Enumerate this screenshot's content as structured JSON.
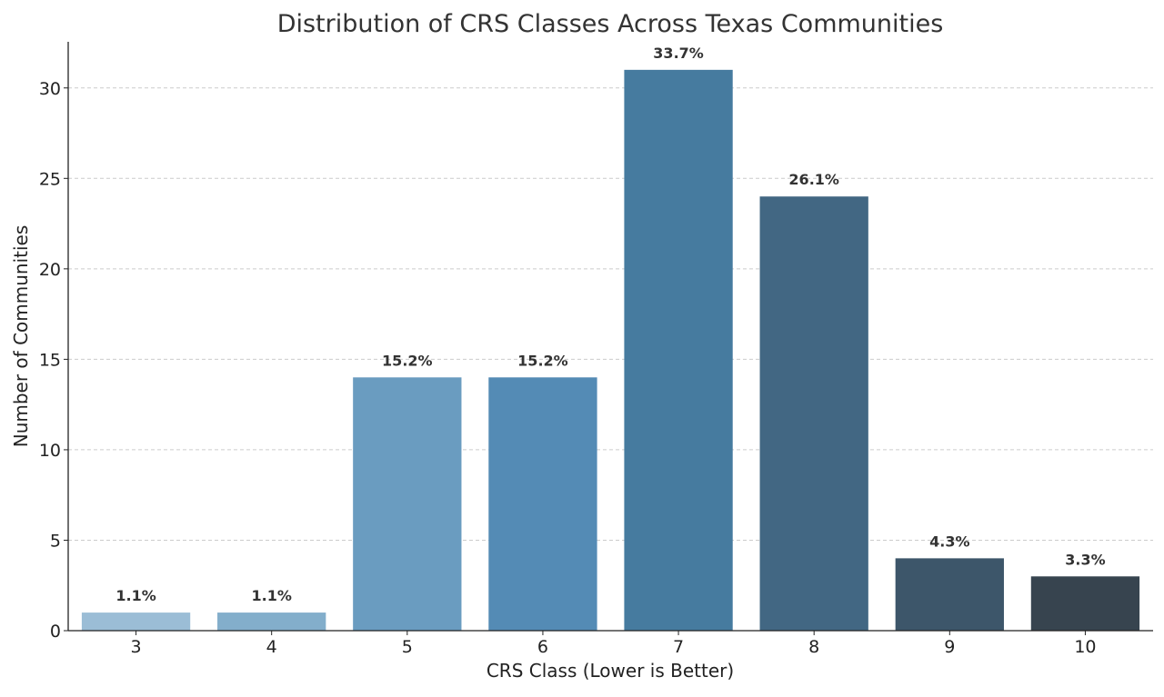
{
  "chart_data": {
    "type": "bar",
    "title": "Distribution of CRS Classes Across Texas Communities",
    "xlabel": "CRS Class (Lower is Better)",
    "ylabel": "Number of Communities",
    "categories": [
      "3",
      "4",
      "5",
      "6",
      "7",
      "8",
      "9",
      "10"
    ],
    "values": [
      1,
      1,
      14,
      14,
      31,
      24,
      4,
      3
    ],
    "data_labels": [
      "1.1%",
      "1.1%",
      "15.2%",
      "15.2%",
      "33.7%",
      "26.1%",
      "4.3%",
      "3.3%"
    ],
    "colors": [
      "#9bbdd6",
      "#83aecb",
      "#6a9cc0",
      "#548bb5",
      "#467b9f",
      "#426783",
      "#3d566a",
      "#37444f"
    ],
    "yticks": [
      0,
      5,
      10,
      15,
      20,
      25,
      30
    ],
    "ylim": [
      0,
      32.55
    ],
    "grid": "y-dashed",
    "legend": "none"
  }
}
